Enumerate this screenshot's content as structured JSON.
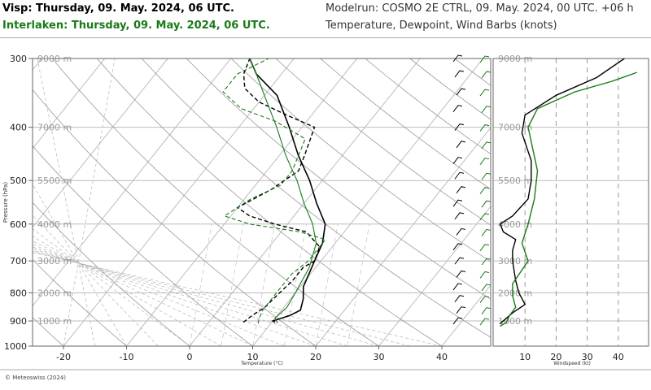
{
  "header": {
    "title_visp": "Visp: Thursday, 09. May. 2024, 06 UTC.",
    "title_interlaken": "Interlaken: Thursday, 09. May. 2024, 06 UTC.",
    "modelrun": "Modelrun: COSMO 2E CTRL, 09. May. 2024, 00 UTC. +06 h",
    "subtitle": "Temperature, Dewpoint, Wind Barbs (knots)"
  },
  "footer": {
    "copyright": "© Meteoswiss (2024)"
  },
  "colors": {
    "visp": "#000000",
    "interlaken": "#1a7a1a",
    "grid": "#bbbbbb",
    "dry_adiabat": "#999999"
  },
  "chart_data": [
    {
      "type": "line",
      "subtype": "skew-t",
      "xlabel": "Temperature (°C)",
      "ylabel": "Pressure (hPa)",
      "x_ticks": [
        -20,
        -10,
        0,
        10,
        20,
        30,
        40
      ],
      "x_tick_labels": [
        "-20",
        "-10",
        "0",
        "10",
        "20",
        "30",
        "40"
      ],
      "y_ticks": [
        300,
        400,
        500,
        600,
        700,
        800,
        900,
        1000
      ],
      "y_tick_labels": [
        "300",
        "400",
        "500",
        "600",
        "700",
        "800",
        "900",
        "1000"
      ],
      "y_scale": "log",
      "height_labels": [
        "9000 m",
        "7000 m",
        "5500 m",
        "4000 m",
        "3000 m",
        "2000 m",
        "1000 m"
      ],
      "height_pressures": [
        300,
        400,
        500,
        600,
        700,
        800,
        900
      ],
      "series": [
        {
          "name": "Visp Temperature",
          "style": "solid",
          "points": [
            [
              10.5,
              905
            ],
            [
              10,
              900
            ],
            [
              12,
              880
            ],
            [
              13,
              860
            ],
            [
              12,
              820
            ],
            [
              10.5,
              780
            ],
            [
              9,
              700
            ],
            [
              8,
              650
            ],
            [
              6,
              600
            ],
            [
              2,
              550
            ],
            [
              -2,
              500
            ],
            [
              -7,
              450
            ],
            [
              -12,
              400
            ],
            [
              -18,
              350
            ],
            [
              -24,
              320
            ],
            [
              -27,
              300
            ]
          ]
        },
        {
          "name": "Visp Dewpoint",
          "style": "dashed",
          "points": [
            [
              5.5,
              905
            ],
            [
              6,
              880
            ],
            [
              7,
              850
            ],
            [
              7.5,
              800
            ],
            [
              8,
              760
            ],
            [
              8,
              720
            ],
            [
              9,
              700
            ],
            [
              8,
              660
            ],
            [
              4,
              620
            ],
            [
              -2,
              600
            ],
            [
              -7,
              580
            ],
            [
              -10,
              560
            ],
            [
              -7,
              520
            ],
            [
              -5,
              480
            ],
            [
              -6,
              450
            ],
            [
              -8,
              400
            ],
            [
              -14,
              380
            ],
            [
              -20,
              360
            ],
            [
              -24,
              340
            ],
            [
              -26,
              320
            ],
            [
              -27,
              300
            ]
          ]
        },
        {
          "name": "Interlaken Temperature",
          "style": "solid",
          "points": [
            [
              11,
              908
            ],
            [
              10,
              890
            ],
            [
              10.5,
              850
            ],
            [
              10,
              800
            ],
            [
              9,
              720
            ],
            [
              7,
              650
            ],
            [
              4,
              600
            ],
            [
              0,
              550
            ],
            [
              -4,
              500
            ],
            [
              -9,
              450
            ],
            [
              -14,
              400
            ],
            [
              -20,
              350
            ],
            [
              -24,
              320
            ],
            [
              -27,
              300
            ]
          ]
        },
        {
          "name": "Interlaken Dewpoint",
          "style": "dashed",
          "points": [
            [
              8,
              910
            ],
            [
              7.5,
              890
            ],
            [
              7,
              860
            ],
            [
              7,
              820
            ],
            [
              7,
              780
            ],
            [
              7,
              740
            ],
            [
              8,
              700
            ],
            [
              8,
              660
            ],
            [
              8,
              640
            ],
            [
              3,
              620
            ],
            [
              -6,
              600
            ],
            [
              -11,
              580
            ],
            [
              -9,
              540
            ],
            [
              -6,
              510
            ],
            [
              -6,
              480
            ],
            [
              -8,
              420
            ],
            [
              -15,
              390
            ],
            [
              -22,
              370
            ],
            [
              -27,
              345
            ],
            [
              -27,
              320
            ],
            [
              -24,
              300
            ]
          ]
        }
      ]
    },
    {
      "type": "line",
      "xlabel": "Windspeed (kt)",
      "x_ticks": [
        10,
        20,
        30,
        40
      ],
      "x_tick_labels": [
        "10",
        "20",
        "30",
        "40"
      ],
      "height_labels": [
        "9000 m",
        "7000 m",
        "5500 m",
        "4000 m",
        "3000 m",
        "2000 m",
        "1000 m"
      ],
      "height_pressures": [
        300,
        400,
        500,
        600,
        700,
        800,
        900
      ],
      "series": [
        {
          "name": "Visp Windspeed",
          "points": [
            [
              2,
              910
            ],
            [
              4,
              890
            ],
            [
              6,
              870
            ],
            [
              10,
              840
            ],
            [
              8,
              800
            ],
            [
              7,
              760
            ],
            [
              6,
              700
            ],
            [
              6,
              670
            ],
            [
              7,
              640
            ],
            [
              3,
              620
            ],
            [
              2,
              600
            ],
            [
              6,
              580
            ],
            [
              11,
              540
            ],
            [
              12,
              500
            ],
            [
              12,
              460
            ],
            [
              9,
              410
            ],
            [
              10,
              380
            ],
            [
              20,
              350
            ],
            [
              33,
              325
            ],
            [
              42,
              300
            ]
          ]
        },
        {
          "name": "Interlaken Windspeed",
          "points": [
            [
              2,
              920
            ],
            [
              4,
              905
            ],
            [
              5,
              880
            ],
            [
              7,
              850
            ],
            [
              6,
              810
            ],
            [
              6,
              770
            ],
            [
              11,
              700
            ],
            [
              9,
              650
            ],
            [
              11,
              600
            ],
            [
              13,
              540
            ],
            [
              14,
              480
            ],
            [
              11,
              400
            ],
            [
              14,
              370
            ],
            [
              26,
              345
            ],
            [
              38,
              330
            ],
            [
              46,
              318
            ]
          ]
        }
      ]
    }
  ]
}
